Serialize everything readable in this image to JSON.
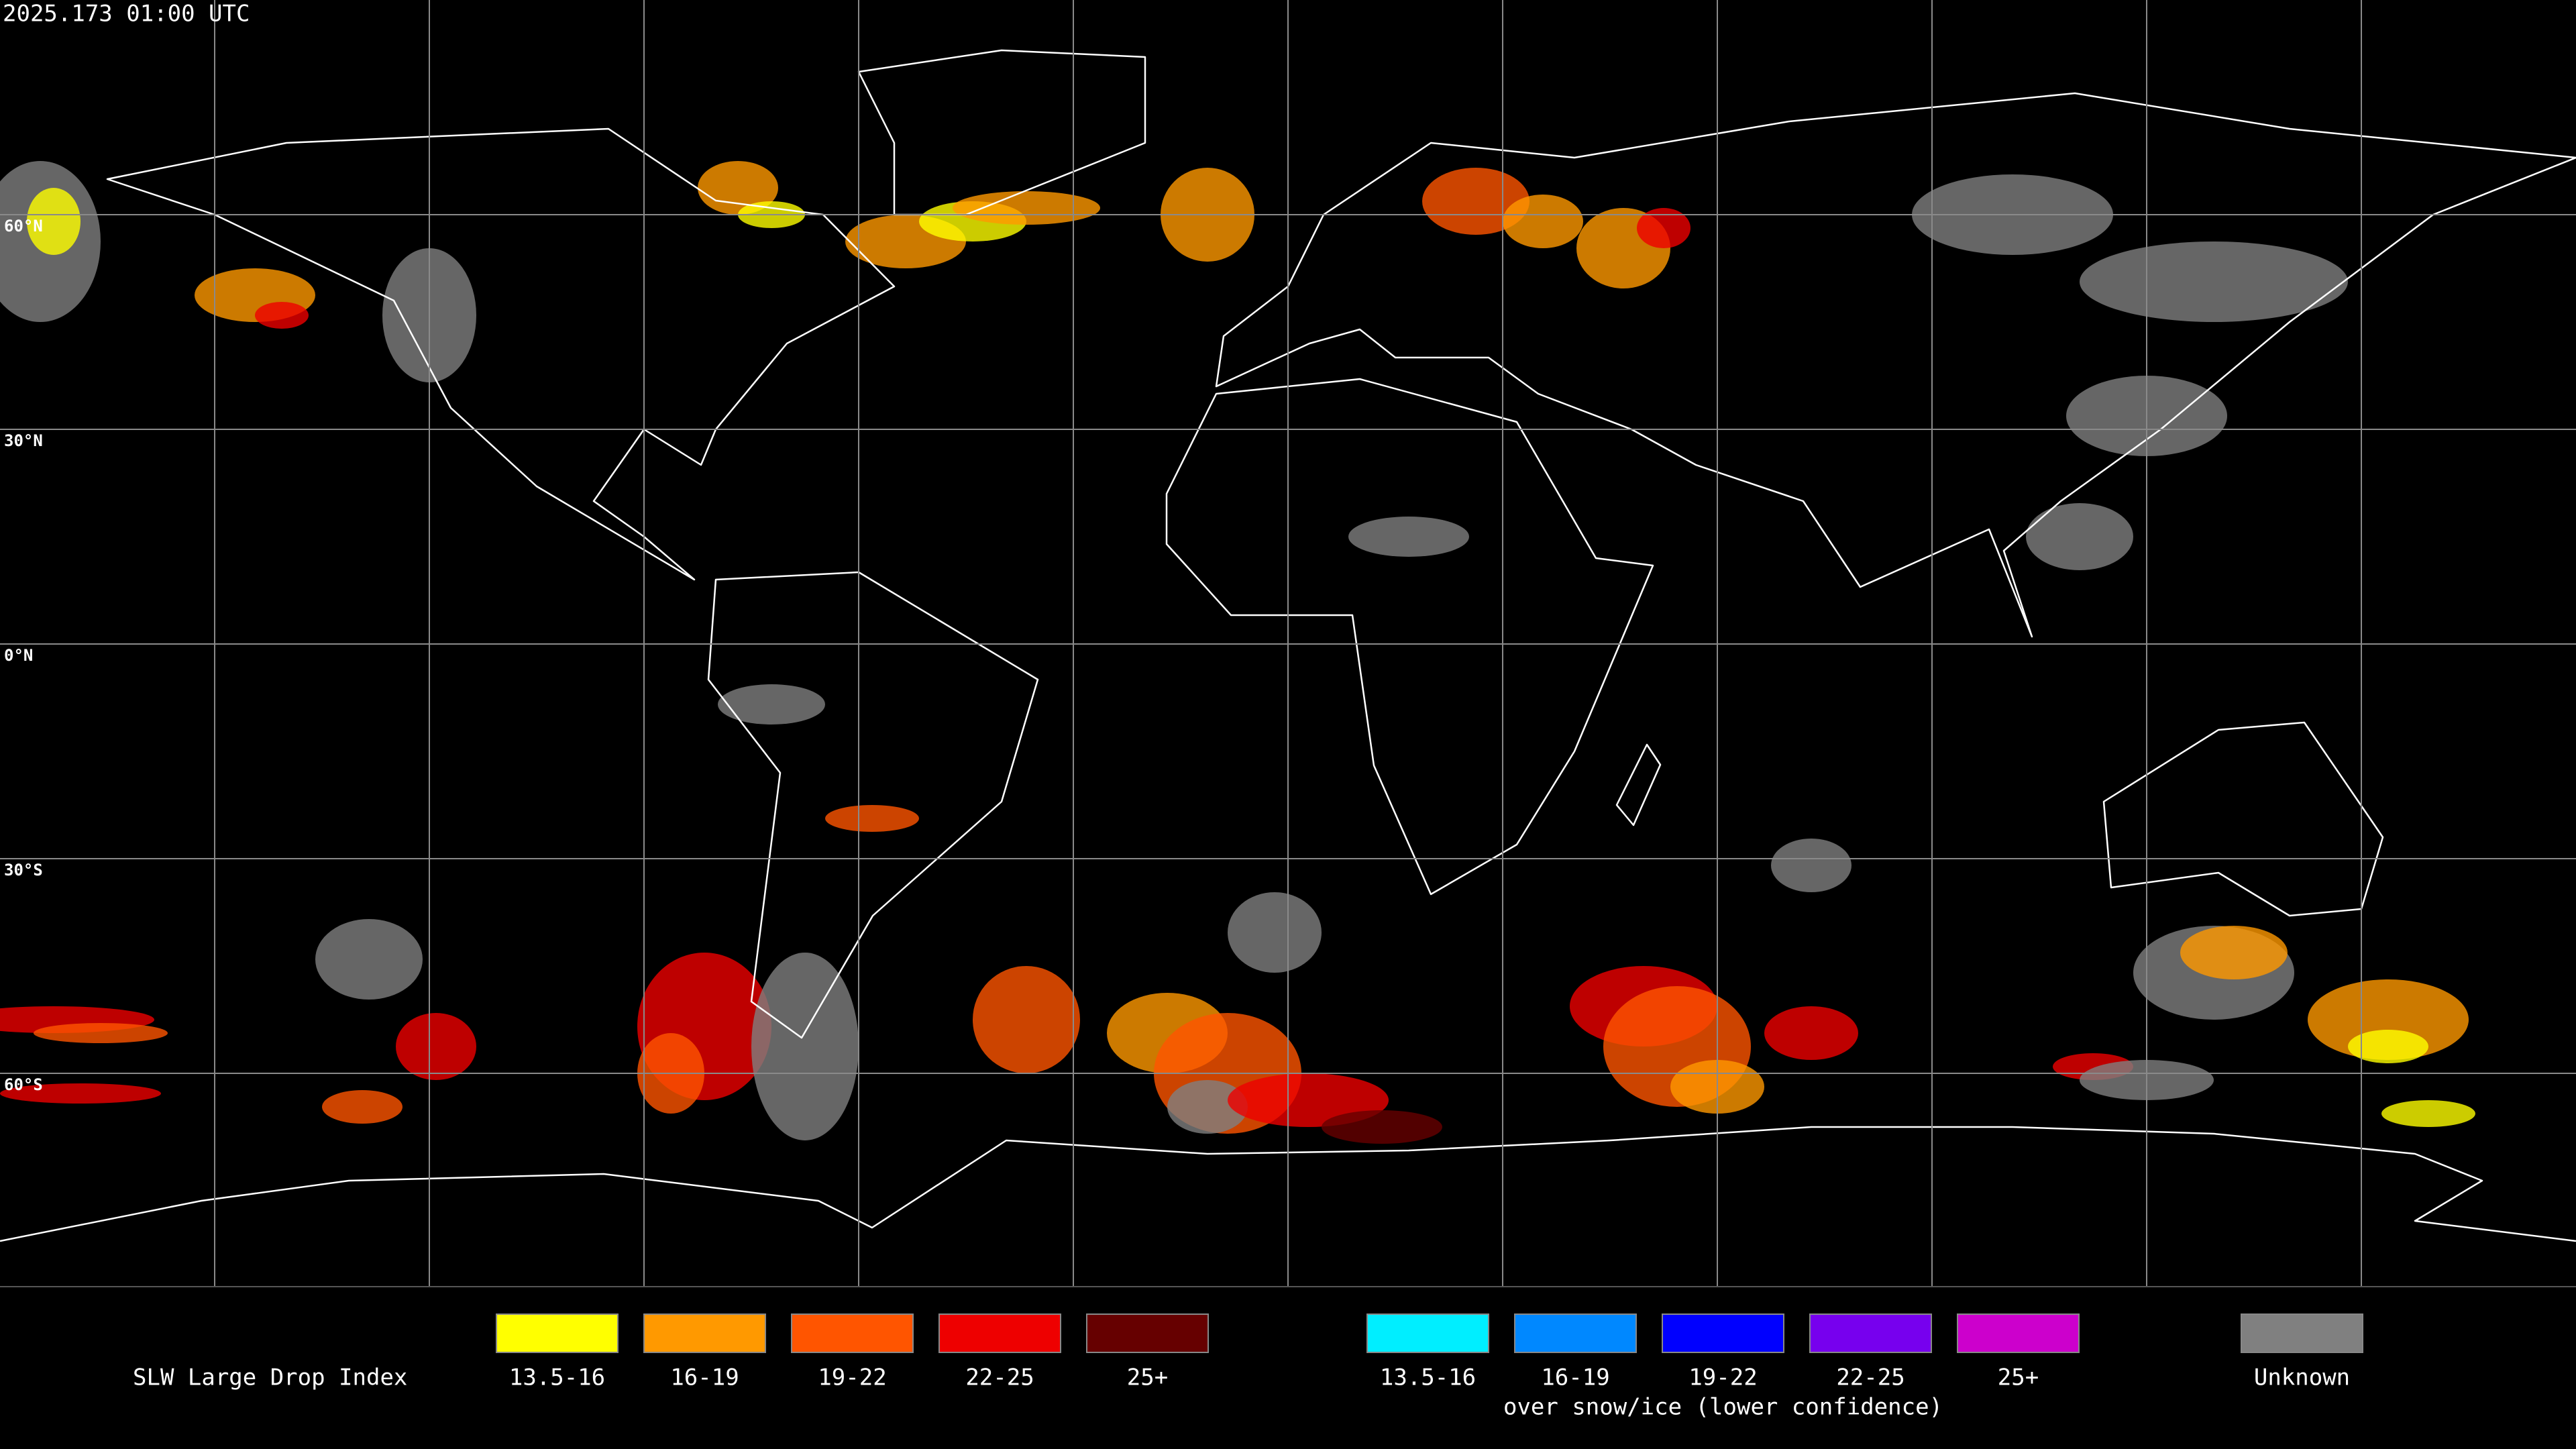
{
  "timestamp": "2025.173 01:00 UTC",
  "latitude_labels": [
    "60°N",
    "30°N",
    "0°N",
    "30°S",
    "60°S"
  ],
  "legend": {
    "title": "SLW Large Drop Index",
    "groups": [
      {
        "items": [
          {
            "label": "13.5-16",
            "color": "#ffff00"
          },
          {
            "label": "16-19",
            "color": "#ff9900"
          },
          {
            "label": "19-22",
            "color": "#ff5500"
          },
          {
            "label": "22-25",
            "color": "#ee0000"
          },
          {
            "label": "25+",
            "color": "#660000"
          }
        ]
      },
      {
        "items": [
          {
            "label": "13.5-16",
            "color": "#00eeff"
          },
          {
            "label": "16-19",
            "color": "#0088ff"
          },
          {
            "label": "19-22",
            "color": "#0000ff"
          },
          {
            "label": "22-25",
            "color": "#7700ee"
          },
          {
            "label": "25+",
            "color": "#cc00cc"
          }
        ],
        "caption": "over snow/ice (lower confidence)"
      }
    ],
    "unknown": {
      "label": "Unknown",
      "color": "#808080"
    }
  }
}
